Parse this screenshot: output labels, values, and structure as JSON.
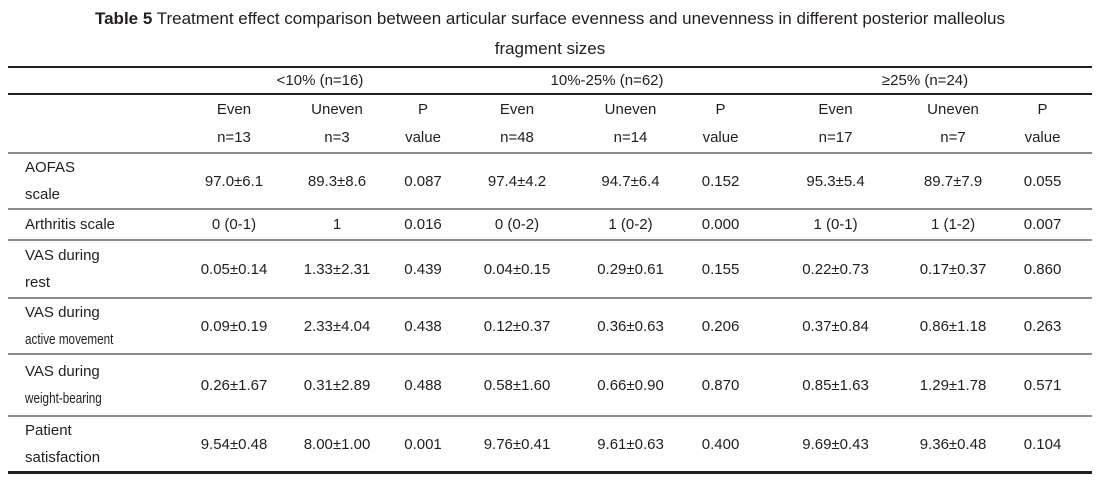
{
  "title": {
    "label": "Table 5",
    "text": "Treatment effect comparison between articular surface evenness and unevenness in different posterior malleolus",
    "text_line2": "fragment sizes"
  },
  "table": {
    "groups": [
      {
        "label": "<10% (n=16)"
      },
      {
        "label": "10%-25% (n=62)"
      },
      {
        "label": "≥25% (n=24)"
      }
    ],
    "subcolumns": [
      {
        "line1": "Even",
        "line2": "n=13"
      },
      {
        "line1": "Uneven",
        "line2": "n=3"
      },
      {
        "line1": "P",
        "line2": "value"
      },
      {
        "line1": "Even",
        "line2": "n=48"
      },
      {
        "line1": "Uneven",
        "line2": "n=14"
      },
      {
        "line1": "P",
        "line2": "value"
      },
      {
        "line1": "Even",
        "line2": "n=17"
      },
      {
        "line1": "Uneven",
        "line2": "n=7"
      },
      {
        "line1": "P",
        "line2": "value"
      }
    ],
    "rows": [
      {
        "label_lines": [
          "AOFAS",
          "scale"
        ],
        "narrow_line2": false,
        "values": [
          "97.0±6.1",
          "89.3±8.6",
          "0.087",
          "97.4±4.2",
          "94.7±6.4",
          "0.152",
          "95.3±5.4",
          "89.7±7.9",
          "0.055"
        ]
      },
      {
        "label_lines": [
          "Arthritis scale"
        ],
        "narrow_line2": false,
        "values": [
          "0 (0-1)",
          "1",
          "0.016",
          "0 (0-2)",
          "1 (0-2)",
          "0.000",
          "1 (0-1)",
          "1 (1-2)",
          "0.007"
        ]
      },
      {
        "label_lines": [
          "VAS during",
          "rest"
        ],
        "narrow_line2": false,
        "values": [
          "0.05±0.14",
          "1.33±2.31",
          "0.439",
          "0.04±0.15",
          "0.29±0.61",
          "0.155",
          "0.22±0.73",
          "0.17±0.37",
          "0.860"
        ]
      },
      {
        "label_lines": [
          "VAS during",
          "active movement"
        ],
        "narrow_line2": true,
        "values": [
          "0.09±0.19",
          "2.33±4.04",
          "0.438",
          "0.12±0.37",
          "0.36±0.63",
          "0.206",
          "0.37±0.84",
          "0.86±1.18",
          "0.263"
        ]
      },
      {
        "label_lines": [
          "VAS during",
          "weight-bearing"
        ],
        "narrow_line2": true,
        "values": [
          "0.26±1.67",
          "0.31±2.89",
          "0.488",
          "0.58±1.60",
          "0.66±0.90",
          "0.870",
          "0.85±1.63",
          "1.29±1.78",
          "0.571"
        ]
      },
      {
        "label_lines": [
          "Patient",
          "satisfaction"
        ],
        "narrow_line2": false,
        "values": [
          "9.54±0.48",
          "8.00±1.00",
          "0.001",
          "9.76±0.41",
          "9.61±0.63",
          "0.400",
          "9.69±0.43",
          "9.36±0.48",
          "0.104"
        ]
      }
    ]
  },
  "colors": {
    "text": "#221e1f",
    "black_rule": "#231f20",
    "gray_rule": "#8c8c8c"
  }
}
